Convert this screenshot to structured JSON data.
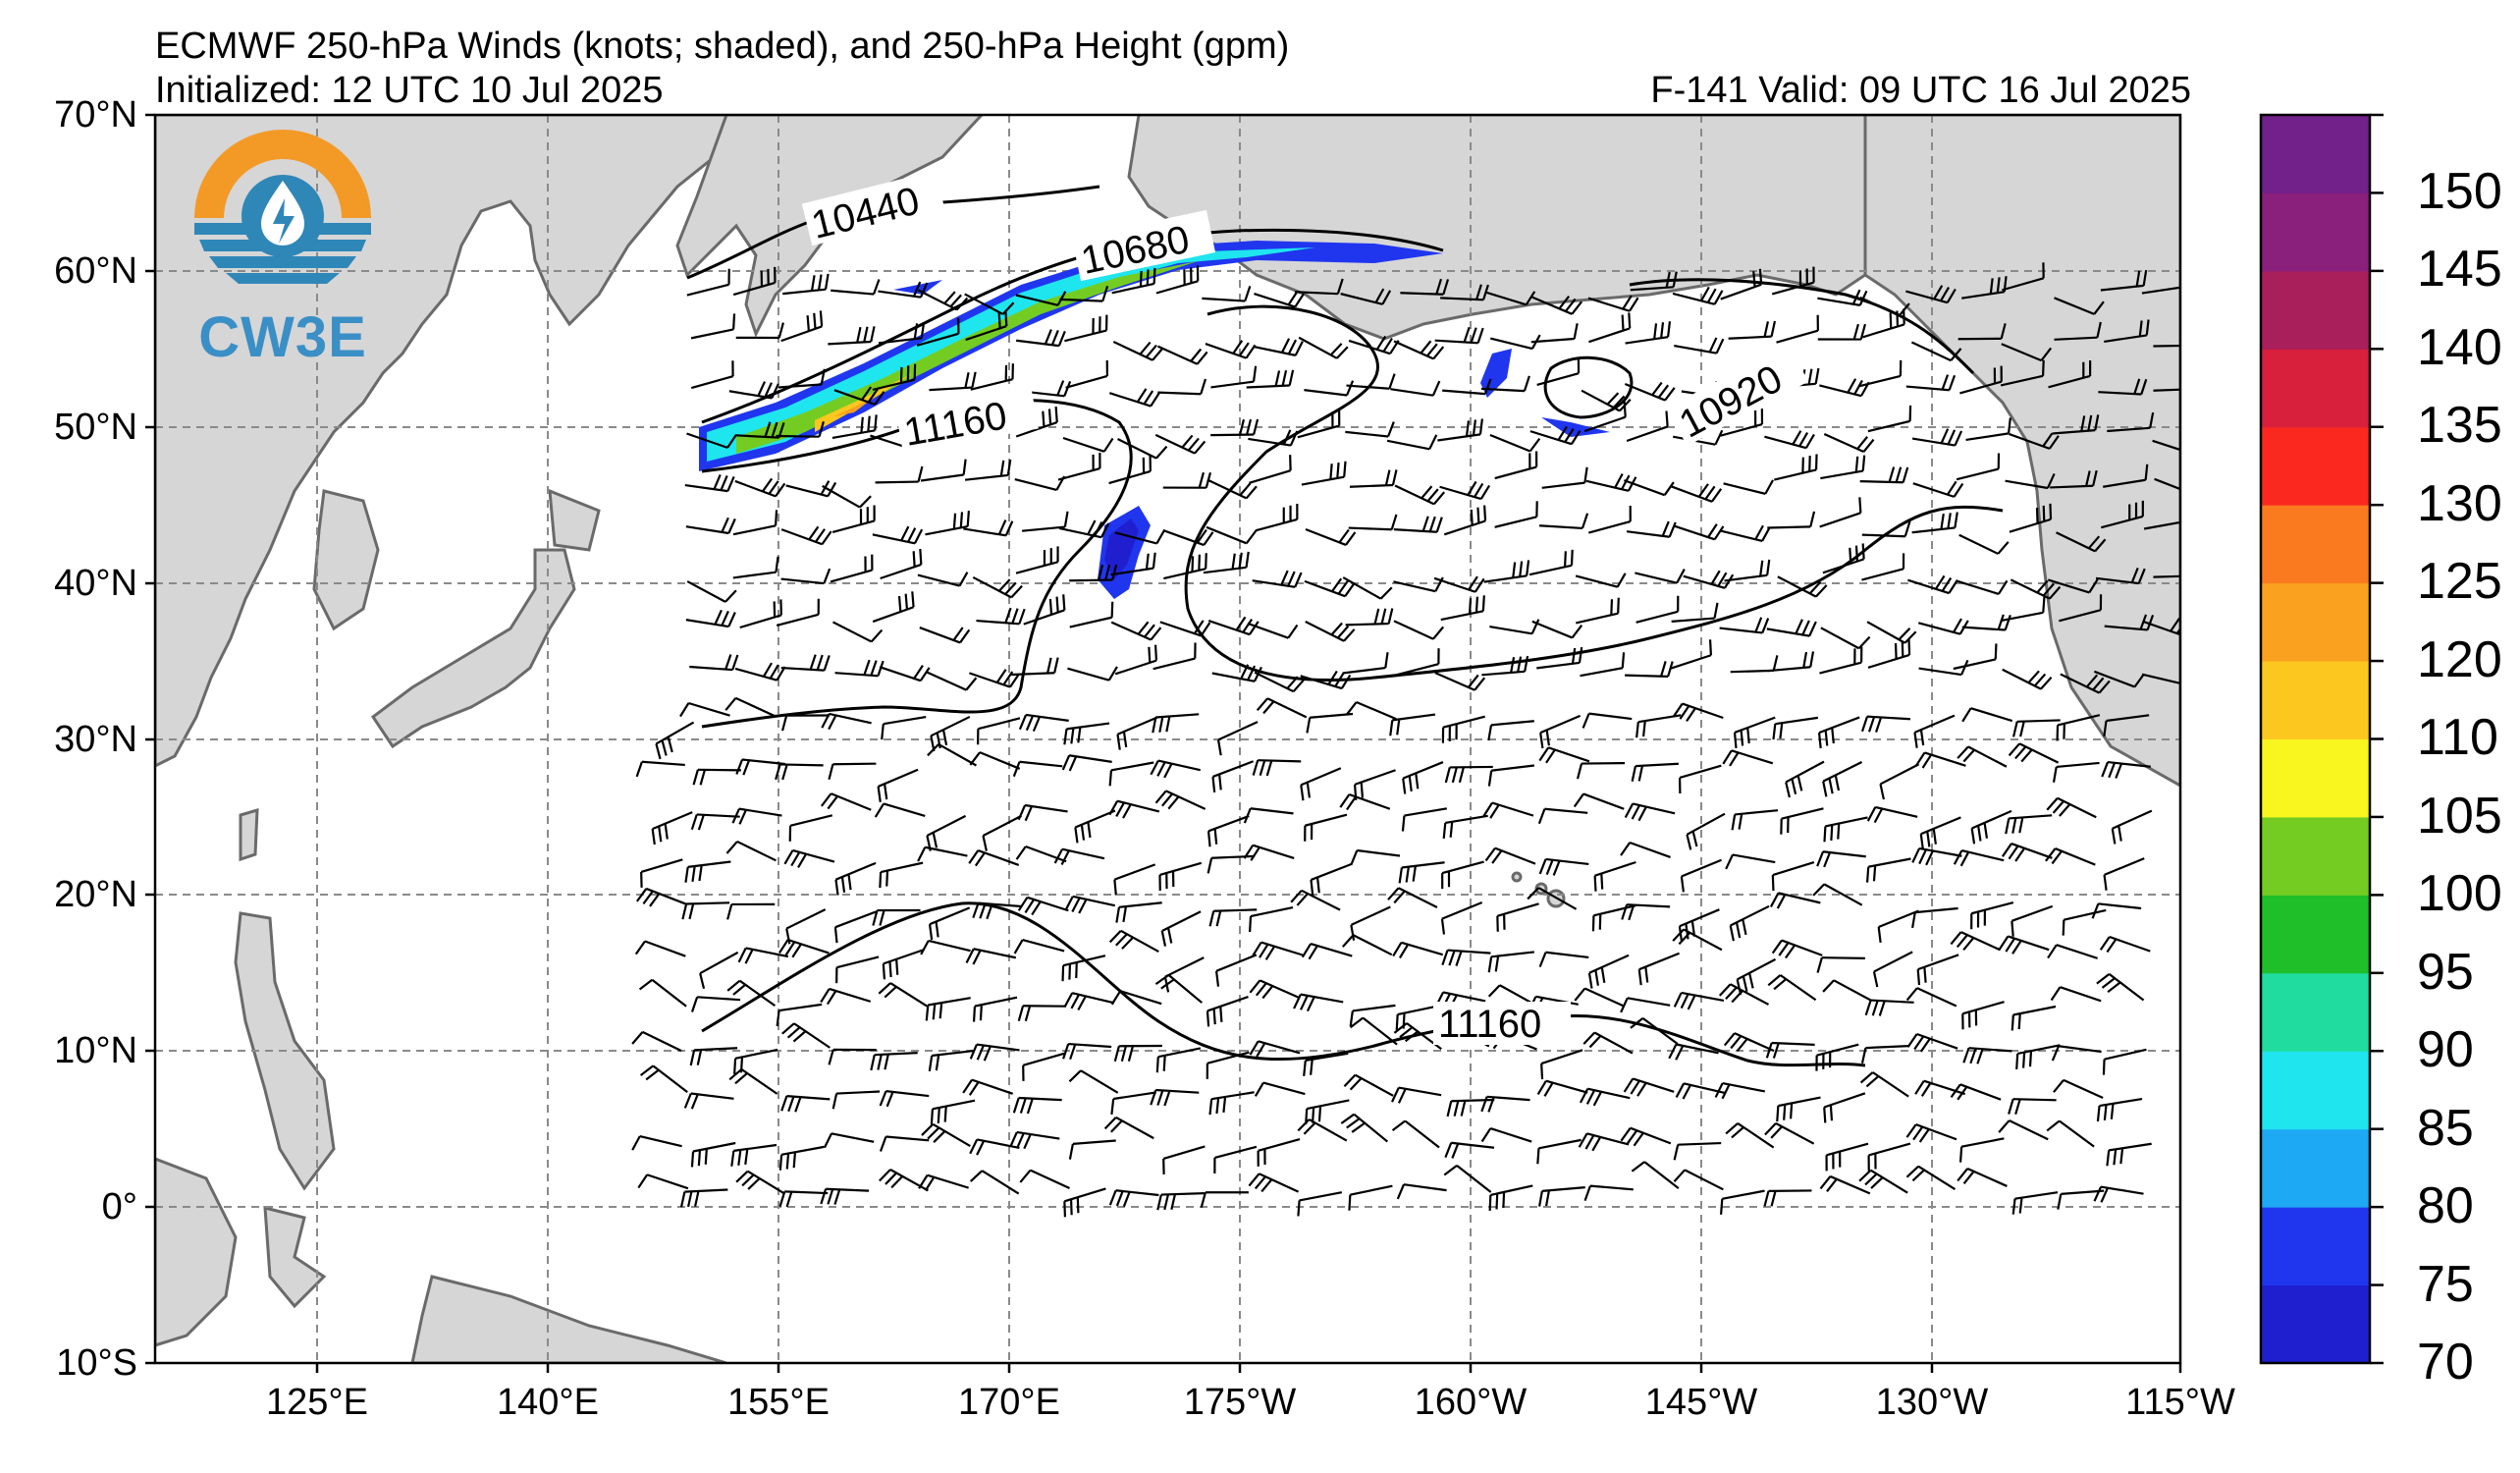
{
  "header": {
    "title": "ECMWF 250-hPa Winds (knots; shaded), and 250-hPa Height (gpm)",
    "initialized": "Initialized: 12 UTC 10 Jul 2025",
    "valid": "F-141  Valid: 09 UTC 16 Jul 2025"
  },
  "logo": {
    "text": "CW3E",
    "icon": "water-drop-sun-logo"
  },
  "axes": {
    "lat_labels": [
      "70°N",
      "60°N",
      "50°N",
      "40°N",
      "30°N",
      "20°N",
      "10°N",
      "0°",
      "10°S"
    ],
    "lon_labels": [
      "125°E",
      "140°E",
      "155°E",
      "170°E",
      "175°W",
      "160°W",
      "145°W",
      "130°W",
      "115°W"
    ],
    "grid": "dashed"
  },
  "contours": {
    "labels": [
      "10440",
      "10680",
      "11160",
      "10920",
      "11160"
    ]
  },
  "colorbar": {
    "labels": [
      "70",
      "75",
      "80",
      "85",
      "90",
      "95",
      "100",
      "105",
      "110",
      "120",
      "125",
      "130",
      "135",
      "140",
      "145",
      "150"
    ],
    "colors": [
      "#1f1fd0",
      "#2036ee",
      "#1ea9f5",
      "#1fe5ee",
      "#20dd9f",
      "#1fbf2a",
      "#74cc22",
      "#f8f51f",
      "#fcc71f",
      "#faa21f",
      "#fa7a1f",
      "#fa281f",
      "#d81f3c",
      "#a81f5c",
      "#8a1f7c",
      "#72208a"
    ]
  },
  "colors": {
    "land": "#d6d6d6",
    "ocean": "#ffffff",
    "coast": "#6a6a6a",
    "grid": "#8a8a8a"
  }
}
